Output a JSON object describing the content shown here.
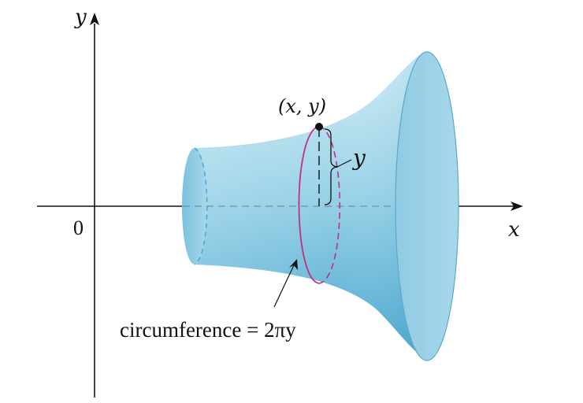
{
  "figure": {
    "axes": {
      "x_label": "x",
      "y_label": "y",
      "origin_label": "0"
    },
    "point_label": "(x, y)",
    "radius_label": "y",
    "caption": "circumference = 2πy",
    "colors": {
      "surface_light": "#bfe4f1",
      "surface_mid": "#84c8e2",
      "surface_dark": "#4aa7cf",
      "edge": "#5aa9cc",
      "circle": "#c0307e",
      "axis": "#111111",
      "dashed_axis": "#7a8f99"
    }
  }
}
